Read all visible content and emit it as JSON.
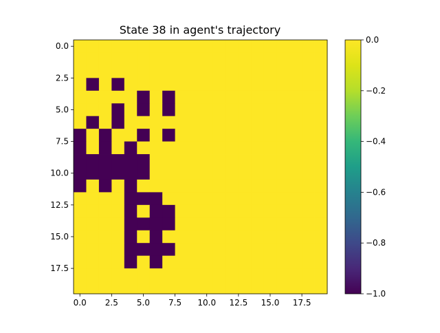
{
  "chart_data": {
    "type": "heatmap",
    "title": "State 38 in agent's trajectory",
    "xlabel": "",
    "ylabel": "",
    "rows": 20,
    "cols": 20,
    "value_min": -1.0,
    "value_max": 0.0,
    "colormap": "viridis",
    "colormap_colors": {
      "low": "#440154",
      "high": "#fde725"
    },
    "x_ticks": [
      0.0,
      2.5,
      5.0,
      7.5,
      10.0,
      12.5,
      15.0,
      17.5
    ],
    "x_tick_labels": [
      "0.0",
      "2.5",
      "5.0",
      "7.5",
      "10.0",
      "12.5",
      "15.0",
      "17.5"
    ],
    "y_ticks": [
      0.0,
      2.5,
      5.0,
      7.5,
      10.0,
      12.5,
      15.0,
      17.5
    ],
    "y_tick_labels": [
      "0.0",
      "2.5",
      "5.0",
      "7.5",
      "10.0",
      "12.5",
      "15.0",
      "17.5"
    ],
    "colorbar_ticks": [
      0.0,
      -0.2,
      -0.4,
      -0.6,
      -0.8,
      -1.0
    ],
    "colorbar_tick_labels": [
      "0.0",
      "−0.2",
      "−0.4",
      "−0.6",
      "−0.8",
      "−1.0"
    ],
    "default_value": 0,
    "cells_value_minus1": [
      [
        3,
        1
      ],
      [
        3,
        3
      ],
      [
        4,
        5
      ],
      [
        4,
        7
      ],
      [
        5,
        3
      ],
      [
        5,
        5
      ],
      [
        5,
        7
      ],
      [
        6,
        1
      ],
      [
        6,
        3
      ],
      [
        7,
        0
      ],
      [
        7,
        2
      ],
      [
        7,
        5
      ],
      [
        7,
        7
      ],
      [
        8,
        0
      ],
      [
        8,
        2
      ],
      [
        8,
        4
      ],
      [
        9,
        0
      ],
      [
        9,
        1
      ],
      [
        9,
        2
      ],
      [
        9,
        3
      ],
      [
        9,
        4
      ],
      [
        9,
        5
      ],
      [
        10,
        0
      ],
      [
        10,
        1
      ],
      [
        10,
        2
      ],
      [
        10,
        3
      ],
      [
        10,
        4
      ],
      [
        10,
        5
      ],
      [
        11,
        0
      ],
      [
        11,
        2
      ],
      [
        11,
        4
      ],
      [
        12,
        4
      ],
      [
        12,
        5
      ],
      [
        12,
        6
      ],
      [
        13,
        4
      ],
      [
        13,
        6
      ],
      [
        13,
        7
      ],
      [
        14,
        4
      ],
      [
        14,
        5
      ],
      [
        14,
        6
      ],
      [
        14,
        7
      ],
      [
        15,
        4
      ],
      [
        15,
        6
      ],
      [
        16,
        4
      ],
      [
        16,
        5
      ],
      [
        16,
        6
      ],
      [
        16,
        7
      ],
      [
        17,
        4
      ],
      [
        17,
        6
      ]
    ],
    "grid": false,
    "legend": "none"
  }
}
